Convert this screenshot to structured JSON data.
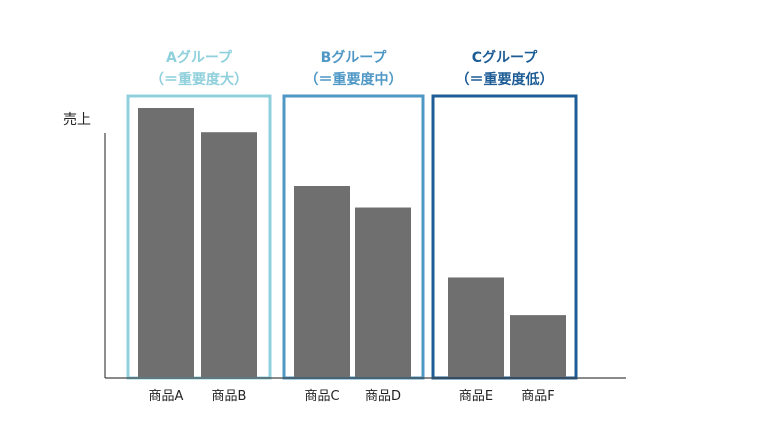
{
  "chart_data": {
    "type": "bar",
    "ylabel": "売上",
    "xlabel": "",
    "grid": false,
    "y_ticks": "none",
    "categories": [
      "商品A",
      "商品B",
      "商品C",
      "商品D",
      "商品E",
      "商品F"
    ],
    "values": [
      100,
      91,
      71,
      63,
      37,
      23
    ],
    "ylim": [
      0,
      100
    ],
    "bar_color": "#6f6f6f",
    "groups": [
      {
        "title": "Aグループ",
        "subtitle": "（＝重要度大）",
        "members": [
          "商品A",
          "商品B"
        ],
        "color": "#8fd0dc"
      },
      {
        "title": "Bグループ",
        "subtitle": "（＝重要度中）",
        "members": [
          "商品C",
          "商品D"
        ],
        "color": "#4f98c6"
      },
      {
        "title": "Cグループ",
        "subtitle": "（＝重要度低）",
        "members": [
          "商品E",
          "商品F"
        ],
        "color": "#1d5c94"
      }
    ]
  }
}
